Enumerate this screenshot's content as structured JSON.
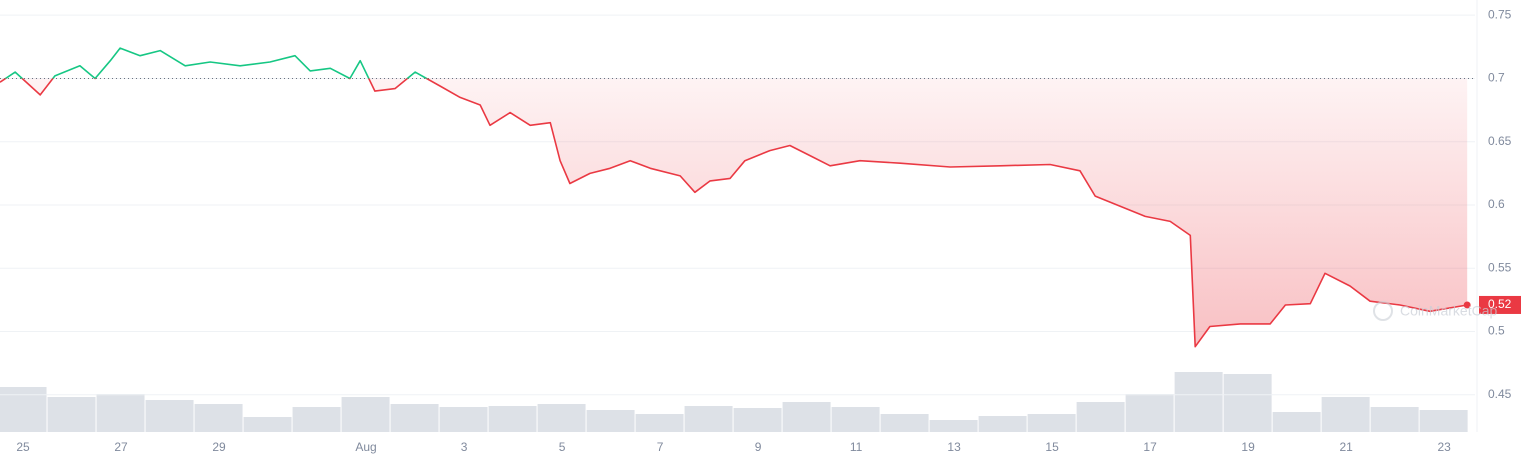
{
  "chart_data": [
    {
      "type": "line",
      "x": [
        -0.47,
        -0.16,
        0.35,
        0.65,
        1.16,
        1.47,
        1.78,
        1.98,
        2.39,
        2.8,
        3.31,
        3.82,
        4.43,
        5.04,
        5.55,
        5.86,
        6.27,
        6.67,
        6.88,
        7.18,
        7.59,
        8.0,
        8.51,
        8.92,
        9.33,
        9.53,
        9.94,
        10.35,
        10.76,
        10.96,
        11.16,
        11.57,
        11.98,
        12.39,
        12.8,
        13.41,
        13.71,
        14.02,
        14.43,
        14.73,
        15.24,
        15.65,
        16.06,
        16.47,
        17.08,
        17.9,
        18.92,
        19.94,
        20.96,
        21.57,
        21.88,
        22.39,
        22.9,
        23.41,
        23.82,
        23.92,
        24.22,
        24.84,
        25.45,
        25.76,
        26.27,
        26.57,
        27.08,
        27.49,
        28.1,
        28.71,
        29.47
      ],
      "values": [
        0.697,
        0.705,
        0.687,
        0.702,
        0.71,
        0.7,
        0.714,
        0.724,
        0.718,
        0.722,
        0.71,
        0.713,
        0.71,
        0.713,
        0.718,
        0.706,
        0.708,
        0.7,
        0.714,
        0.69,
        0.692,
        0.705,
        0.694,
        0.685,
        0.679,
        0.663,
        0.673,
        0.663,
        0.665,
        0.635,
        0.617,
        0.625,
        0.629,
        0.635,
        0.629,
        0.623,
        0.61,
        0.619,
        0.621,
        0.635,
        0.643,
        0.647,
        0.639,
        0.631,
        0.635,
        0.633,
        0.63,
        0.631,
        0.632,
        0.627,
        0.607,
        0.599,
        0.591,
        0.587,
        0.576,
        0.488,
        0.504,
        0.506,
        0.506,
        0.521,
        0.522,
        0.546,
        0.536,
        0.524,
        0.521,
        0.516,
        0.521
      ],
      "baseline": 0.7,
      "up_color": "#16c784",
      "down_color": "#ea3943",
      "last_label": "0.52",
      "watermark": "CoinMarketCap",
      "xlim": [
        -0.47,
        29.63
      ],
      "xticks": [
        {
          "value": 0,
          "label": "25"
        },
        {
          "value": 2,
          "label": "27"
        },
        {
          "value": 4,
          "label": "29"
        },
        {
          "value": 7,
          "label": "Aug"
        },
        {
          "value": 9,
          "label": "3"
        },
        {
          "value": 11,
          "label": "5"
        },
        {
          "value": 13,
          "label": "7"
        },
        {
          "value": 15,
          "label": "9"
        },
        {
          "value": 17,
          "label": "11"
        },
        {
          "value": 19,
          "label": "13"
        },
        {
          "value": 21,
          "label": "15"
        },
        {
          "value": 23,
          "label": "17"
        },
        {
          "value": 25,
          "label": "19"
        },
        {
          "value": 27,
          "label": "21"
        },
        {
          "value": 29,
          "label": "23"
        }
      ],
      "ylim": [
        0.4206,
        0.762
      ],
      "yticks": [
        0.45,
        0.5,
        0.55,
        0.6,
        0.65,
        0.7,
        0.75
      ],
      "grid": true
    },
    {
      "type": "bar",
      "color": "#dde1e7",
      "x": [
        0,
        1,
        2,
        3,
        4,
        5,
        6,
        7,
        8,
        9,
        10,
        11,
        12,
        13,
        14,
        15,
        16,
        17,
        18,
        19,
        20,
        21,
        22,
        23,
        24,
        25,
        26,
        27,
        28,
        29
      ],
      "values": [
        45,
        35,
        38,
        32,
        28,
        15,
        25,
        35,
        28,
        25,
        26,
        28,
        22,
        18,
        26,
        24,
        30,
        25,
        18,
        12,
        16,
        18,
        30,
        38,
        60,
        58,
        20,
        35,
        25,
        22
      ],
      "ylim": [
        0,
        100
      ]
    }
  ]
}
